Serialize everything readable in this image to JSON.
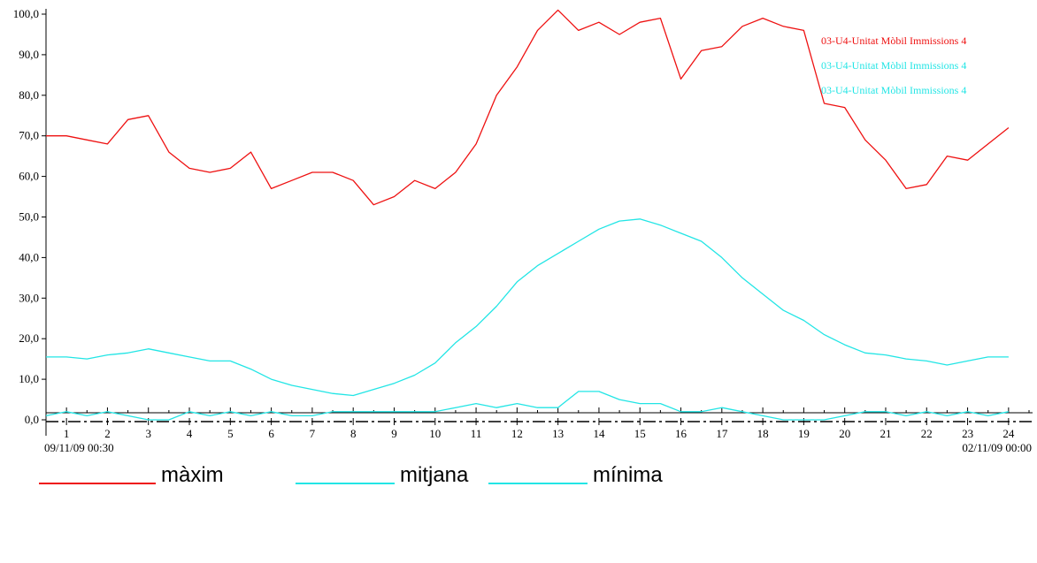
{
  "chart_data": {
    "type": "line",
    "ylim": [
      0,
      100
    ],
    "y_ticks": [
      "100,0",
      "90,0",
      "80,0",
      "70,0",
      "60,0",
      "50,0",
      "40,0",
      "30,0",
      "20,0",
      "10,0",
      "0,0"
    ],
    "y_tick_values": [
      100,
      90,
      80,
      70,
      60,
      50,
      40,
      30,
      20,
      10,
      0
    ],
    "x_ticks": [
      "1",
      "2",
      "3",
      "4",
      "5",
      "6",
      "7",
      "8",
      "9",
      "10",
      "11",
      "12",
      "13",
      "14",
      "15",
      "16",
      "17",
      "18",
      "19",
      "20",
      "21",
      "22",
      "23",
      "24"
    ],
    "x_start_label": "09/11/09 00:30",
    "x_end_label": "02/11/09 00:00",
    "xlim": [
      0.5,
      24.5
    ],
    "series_labels": [
      {
        "text": "03-U4-Unitat Mòbil Immissions 4",
        "color": "#ee1111"
      },
      {
        "text": "03-U4-Unitat Mòbil Immissions 4",
        "color": "#22e5e5"
      },
      {
        "text": "03-U4-Unitat Mòbil Immissions 4",
        "color": "#22e5e5"
      }
    ],
    "series": [
      {
        "name": "màxim",
        "color": "#ee1111",
        "x": [
          0.5,
          1,
          1.5,
          2,
          2.5,
          3,
          3.5,
          4,
          4.5,
          5,
          5.5,
          6,
          6.5,
          7,
          7.5,
          8,
          8.5,
          9,
          9.5,
          10,
          10.5,
          11,
          11.5,
          12,
          12.5,
          13,
          13.5,
          14,
          14.5,
          15,
          15.5,
          16,
          16.5,
          17,
          17.5,
          18,
          18.5,
          19,
          19.5,
          20,
          20.5,
          21,
          21.5,
          22,
          22.5,
          23,
          23.5,
          24
        ],
        "values": [
          70,
          70,
          69,
          68,
          74,
          75,
          66,
          62,
          61,
          62,
          66,
          57,
          59,
          61,
          61,
          59,
          53,
          55,
          59,
          57,
          61,
          68,
          80,
          87,
          96,
          101,
          96,
          98,
          95,
          98,
          99,
          84,
          91,
          92,
          97,
          99,
          97,
          96,
          78,
          77,
          69,
          64,
          57,
          58,
          65,
          64,
          68,
          72
        ]
      },
      {
        "name": "mitjana",
        "color": "#22e5e5",
        "x": [
          0.5,
          1,
          1.5,
          2,
          2.5,
          3,
          3.5,
          4,
          4.5,
          5,
          5.5,
          6,
          6.5,
          7,
          7.5,
          8,
          8.5,
          9,
          9.5,
          10,
          10.5,
          11,
          11.5,
          12,
          12.5,
          13,
          13.5,
          14,
          14.5,
          15,
          15.5,
          16,
          16.5,
          17,
          17.5,
          18,
          18.5,
          19,
          19.5,
          20,
          20.5,
          21,
          21.5,
          22,
          22.5,
          23,
          23.5,
          24
        ],
        "values": [
          15.5,
          15.5,
          15,
          16,
          16.5,
          17.5,
          16.5,
          15.5,
          14.5,
          14.5,
          12.5,
          10,
          8.5,
          7.5,
          6.5,
          6,
          7.5,
          9,
          11,
          14,
          19,
          23,
          28,
          34,
          38,
          41,
          44,
          47,
          49,
          49.5,
          48,
          46,
          44,
          40,
          35,
          31,
          27,
          24.5,
          21,
          18.5,
          16.5,
          16,
          15,
          14.5,
          13.5,
          14.5,
          15.5,
          15.5
        ]
      },
      {
        "name": "mínima",
        "color": "#22e5e5",
        "x": [
          0.5,
          1,
          1.5,
          2,
          2.5,
          3,
          3.5,
          4,
          4.5,
          5,
          5.5,
          6,
          6.5,
          7,
          7.5,
          8,
          8.5,
          9,
          9.5,
          10,
          10.5,
          11,
          11.5,
          12,
          12.5,
          13,
          13.5,
          14,
          14.5,
          15,
          15.5,
          16,
          16.5,
          17,
          17.5,
          18,
          18.5,
          19,
          19.5,
          20,
          20.5,
          21,
          21.5,
          22,
          22.5,
          23,
          23.5,
          24
        ],
        "values": [
          1,
          2,
          1,
          2,
          1,
          0,
          0,
          2,
          1,
          2,
          1,
          2,
          1,
          1,
          2,
          2,
          2,
          2,
          2,
          2,
          3,
          4,
          3,
          4,
          3,
          3,
          7,
          7,
          5,
          4,
          4,
          2,
          2,
          3,
          2,
          1,
          0,
          0,
          0,
          1,
          2,
          2,
          1,
          2,
          1,
          2,
          1,
          2
        ]
      }
    ]
  },
  "legend": [
    {
      "label": "màxim",
      "color": "#ee1111"
    },
    {
      "label": "mitjana",
      "color": "#22e5e5"
    },
    {
      "label": "mínima",
      "color": "#22e5e5"
    }
  ]
}
